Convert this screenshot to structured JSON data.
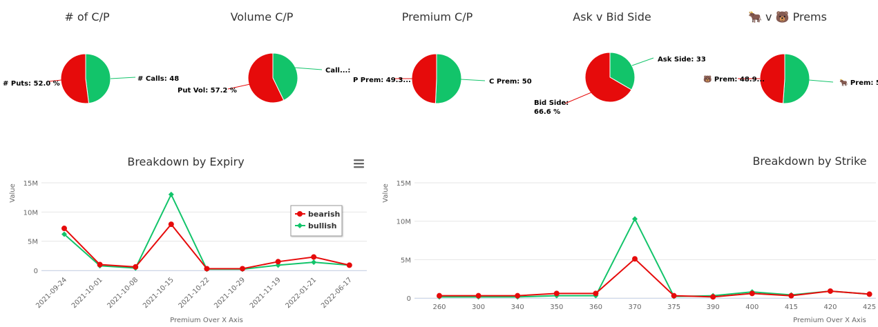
{
  "colors": {
    "bearish": "#e60b0b",
    "bullish": "#12c46a",
    "grid": "#e6e6e6"
  },
  "pies": [
    {
      "title": "# of C/P",
      "bear_label": "# Puts: 52.0 %",
      "bull_label": "# Calls: 48",
      "bull_pct": 48.0
    },
    {
      "title": "Volume C/P",
      "bear_label": "Put Vol: 57.2 %",
      "bull_label": "Call...:",
      "bull_pct": 42.8
    },
    {
      "title": "Premium C/P",
      "bear_label": "P Prem: 49.3...",
      "bull_label": "C Prem: 50",
      "bull_pct": 50.7
    },
    {
      "title": "Ask v Bid Side",
      "bear_label": "Bid Side:",
      "bear_label_2": "66.6 %",
      "bull_label": "Ask Side: 33",
      "bull_pct": 33.4
    },
    {
      "title": "🐂 v 🐻 Prems",
      "bear_label": "🐻 Prem: 48.9...",
      "bull_label": "🐂 Prem: 5",
      "bull_pct": 51.1
    }
  ],
  "menu_icon": "hamburger-menu-icon",
  "chart_data": [
    {
      "type": "line",
      "title": "Breakdown by Expiry",
      "xlabel": "Premium Over X Axis",
      "ylabel": "Value",
      "ylim": [
        0,
        15000000
      ],
      "yticks": [
        "0",
        "5M",
        "10M",
        "15M"
      ],
      "categories": [
        "2021-09-24",
        "2021-10-01",
        "2021-10-08",
        "2021-10-15",
        "2021-10-22",
        "2021-10-29",
        "2021-11-19",
        "2022-01-21",
        "2022-06-17"
      ],
      "series": [
        {
          "name": "bearish",
          "values": [
            7200000,
            1000000,
            600000,
            7900000,
            300000,
            300000,
            1500000,
            2300000,
            900000
          ]
        },
        {
          "name": "bullish",
          "values": [
            6200000,
            800000,
            400000,
            13000000,
            200000,
            200000,
            900000,
            1400000,
            900000
          ]
        }
      ],
      "legend": "top-right",
      "grid": true
    },
    {
      "type": "line",
      "title": "Breakdown by Strike",
      "xlabel": "Premium Over X Axis",
      "ylabel": "Value",
      "ylim": [
        0,
        15000000
      ],
      "yticks": [
        "0",
        "5M",
        "10M",
        "15M"
      ],
      "categories": [
        "260",
        "300",
        "340",
        "350",
        "360",
        "370",
        "375",
        "390",
        "400",
        "415",
        "420",
        "425"
      ],
      "series": [
        {
          "name": "bearish",
          "values": [
            300000,
            300000,
            300000,
            600000,
            600000,
            5100000,
            300000,
            150000,
            600000,
            300000,
            900000,
            500000
          ]
        },
        {
          "name": "bullish",
          "values": [
            150000,
            150000,
            150000,
            300000,
            300000,
            10300000,
            200000,
            300000,
            800000,
            400000,
            900000,
            500000
          ]
        }
      ],
      "grid": true
    }
  ]
}
